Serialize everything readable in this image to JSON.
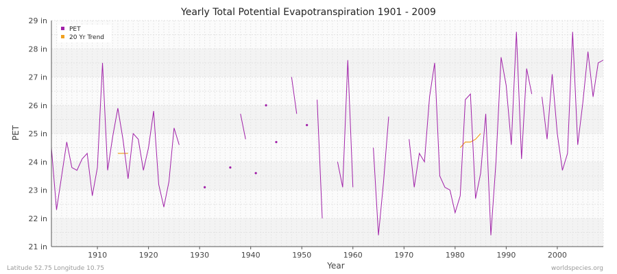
{
  "chart_data": {
    "type": "line",
    "title": "Yearly Total Potential Evapotranspiration 1901 - 2009",
    "xlabel": "Year",
    "ylabel": "PET",
    "xlim": [
      1901,
      2009
    ],
    "ylim": [
      21,
      29
    ],
    "x_ticks": [
      1910,
      1920,
      1930,
      1940,
      1950,
      1960,
      1970,
      1980,
      1990,
      2000
    ],
    "y_ticks": [
      21,
      22,
      23,
      24,
      25,
      26,
      27,
      28,
      29
    ],
    "y_tick_suffix": " in",
    "grid": true,
    "legend_position": "top-left",
    "series": [
      {
        "name": "PET",
        "color": "#a020a8",
        "points": [
          [
            1901,
            24.5
          ],
          [
            1902,
            22.3
          ],
          [
            1904,
            24.7
          ],
          [
            1905,
            23.8
          ],
          [
            1906,
            23.7
          ],
          [
            1907,
            24.1
          ],
          [
            1908,
            24.3
          ],
          [
            1909,
            22.8
          ],
          [
            1910,
            23.8
          ],
          [
            1911,
            27.5
          ],
          [
            1912,
            23.7
          ],
          [
            1913,
            24.9
          ],
          [
            1914,
            25.9
          ],
          [
            1915,
            24.8
          ],
          [
            1916,
            23.4
          ],
          [
            1917,
            25.0
          ],
          [
            1918,
            24.8
          ],
          [
            1919,
            23.7
          ],
          [
            1920,
            24.5
          ],
          [
            1921,
            25.8
          ],
          [
            1922,
            23.2
          ],
          [
            1923,
            22.4
          ],
          [
            1924,
            23.3
          ],
          [
            1925,
            25.2
          ],
          [
            1926,
            24.6
          ],
          null,
          [
            1931,
            23.1
          ],
          null,
          [
            1936,
            23.8
          ],
          null,
          [
            1938,
            25.7
          ],
          [
            1939,
            24.8
          ],
          null,
          [
            1941,
            23.6
          ],
          null,
          [
            1943,
            26.0
          ],
          null,
          [
            1945,
            24.7
          ],
          null,
          [
            1948,
            27.0
          ],
          [
            1949,
            25.7
          ],
          null,
          [
            1951,
            25.3
          ],
          null,
          [
            1953,
            26.2
          ],
          [
            1954,
            22.0
          ],
          null,
          [
            1957,
            24.0
          ],
          [
            1958,
            23.1
          ],
          [
            1959,
            27.6
          ],
          [
            1960,
            23.1
          ],
          null,
          [
            1964,
            24.5
          ],
          [
            1965,
            21.4
          ],
          [
            1966,
            23.3
          ],
          [
            1967,
            25.6
          ],
          null,
          [
            1971,
            24.8
          ],
          [
            1972,
            23.1
          ],
          [
            1973,
            24.3
          ],
          [
            1974,
            24.0
          ],
          [
            1975,
            26.3
          ],
          [
            1976,
            27.5
          ],
          [
            1977,
            23.5
          ],
          [
            1978,
            23.1
          ],
          [
            1979,
            23.0
          ],
          [
            1980,
            22.2
          ],
          [
            1981,
            22.8
          ],
          [
            1982,
            26.2
          ],
          [
            1983,
            26.4
          ],
          [
            1984,
            22.7
          ],
          [
            1985,
            23.6
          ],
          [
            1986,
            25.7
          ],
          [
            1987,
            21.4
          ],
          [
            1988,
            24.0
          ],
          [
            1989,
            27.7
          ],
          [
            1990,
            26.7
          ],
          [
            1991,
            24.6
          ],
          [
            1992,
            28.6
          ],
          [
            1993,
            24.1
          ],
          [
            1994,
            27.3
          ],
          [
            1995,
            26.4
          ],
          null,
          [
            1997,
            26.3
          ],
          [
            1998,
            24.8
          ],
          [
            1999,
            27.1
          ],
          [
            2000,
            25.0
          ],
          [
            2001,
            23.7
          ],
          [
            2002,
            24.3
          ],
          [
            2003,
            28.6
          ],
          [
            2004,
            24.6
          ],
          [
            2005,
            26.1
          ],
          [
            2006,
            27.9
          ],
          [
            2007,
            26.3
          ],
          [
            2008,
            27.5
          ],
          [
            2009,
            27.6
          ]
        ]
      },
      {
        "name": "20 Yr Trend",
        "color": "#f0a020",
        "segments": [
          [
            [
              1914,
              24.3
            ],
            [
              1916,
              24.3
            ]
          ],
          [
            [
              1981,
              24.5
            ],
            [
              1982,
              24.7
            ],
            [
              1983,
              24.7
            ],
            [
              1984,
              24.8
            ],
            [
              1985,
              25.0
            ]
          ]
        ]
      }
    ],
    "footer_left": "Latitude 52.75 Longitude 10.75",
    "footer_right": "worldspecies.org"
  }
}
